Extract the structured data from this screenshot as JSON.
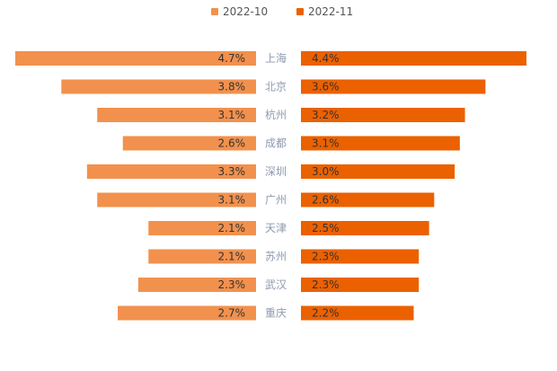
{
  "chart_data": {
    "type": "bar",
    "orientation": "horizontal-butterfly",
    "title": "",
    "xlabel": "",
    "ylabel": "",
    "categories": [
      "上海",
      "北京",
      "杭州",
      "成都",
      "深圳",
      "广州",
      "天津",
      "苏州",
      "武汉",
      "重庆"
    ],
    "series": [
      {
        "name": "2022-10",
        "color": "#F2914D",
        "side": "left",
        "values": [
          4.7,
          3.8,
          3.1,
          2.6,
          3.3,
          3.1,
          2.1,
          2.1,
          2.3,
          2.7
        ],
        "labels": [
          "4.7%",
          "3.8%",
          "3.1%",
          "2.6%",
          "3.3%",
          "3.1%",
          "2.1%",
          "2.1%",
          "2.3%",
          "2.7%"
        ]
      },
      {
        "name": "2022-11",
        "color": "#EB6100",
        "side": "right",
        "values": [
          4.4,
          3.6,
          3.2,
          3.1,
          3.0,
          2.6,
          2.5,
          2.3,
          2.3,
          2.2
        ],
        "labels": [
          "4.4%",
          "3.6%",
          "3.2%",
          "3.1%",
          "3.0%",
          "2.6%",
          "2.5%",
          "2.3%",
          "2.3%",
          "2.2%"
        ]
      }
    ],
    "legend_position": "top-center",
    "grid": false,
    "category_label_color": "#8E9AAF",
    "value_label_color": "#333333"
  }
}
